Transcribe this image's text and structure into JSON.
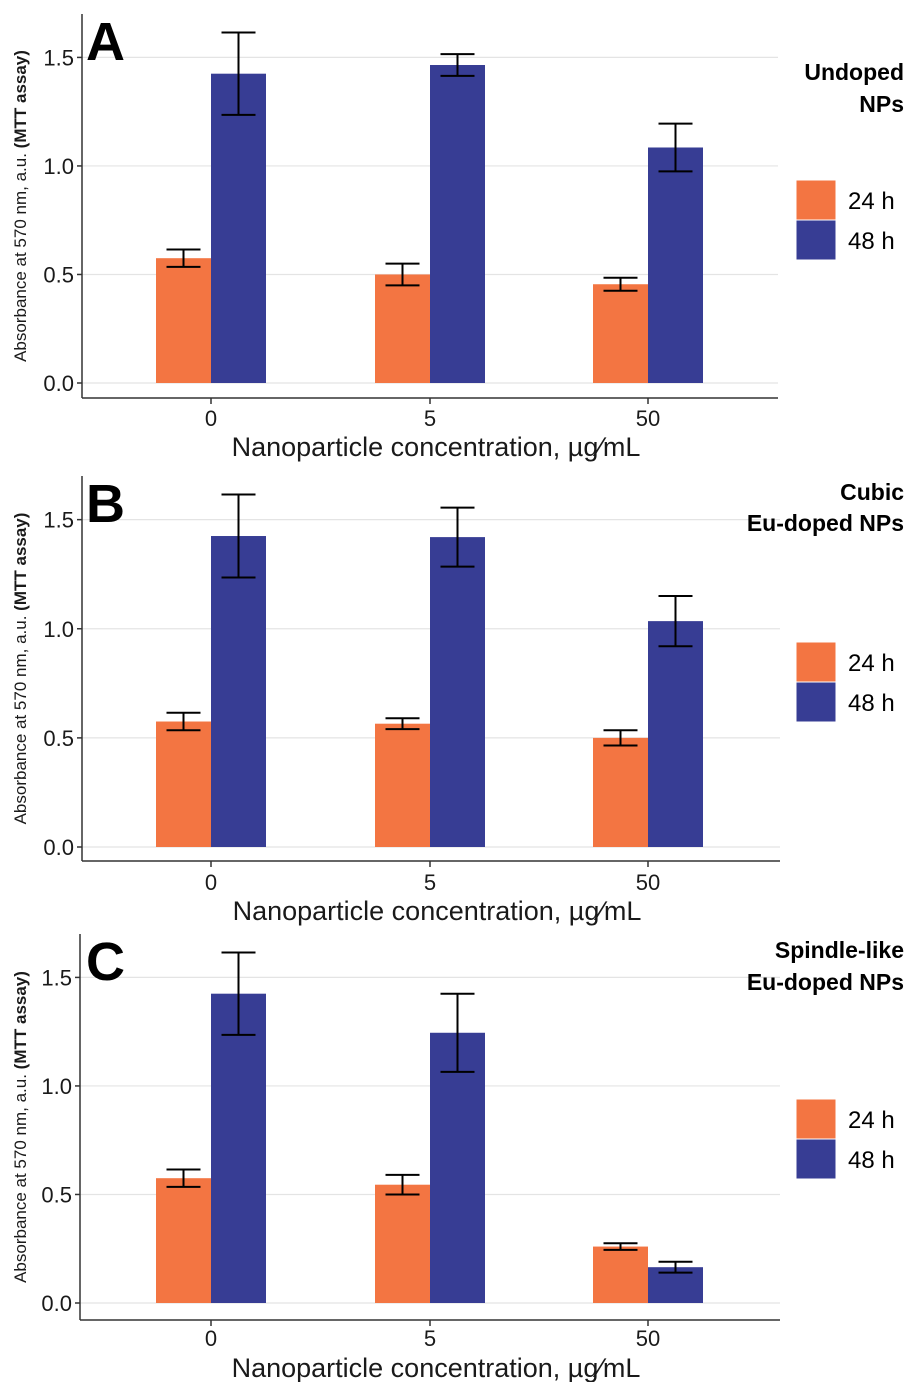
{
  "chart_data": [
    {
      "type": "bar",
      "panel_label": "A",
      "title": "Undoped NPs",
      "title_lines": [
        "Undoped",
        "NPs"
      ],
      "categories": [
        "0",
        "5",
        "50"
      ],
      "xlabel": "Nanoparticle concentration, µg∕mL",
      "ylabel": "Absorbance at 570 nm, a.u.",
      "ylabel_bold": "(MTT assay)",
      "ylim": [
        0,
        1.7
      ],
      "yticks": [
        "0.0",
        "0.5",
        "1.0",
        "1.5"
      ],
      "grid": true,
      "legend": "right",
      "series": [
        {
          "name": "24 h",
          "color": "#F37542",
          "values": [
            0.575,
            0.5,
            0.455
          ],
          "errors": [
            0.04,
            0.05,
            0.03
          ]
        },
        {
          "name": "48 h",
          "color": "#373D94",
          "values": [
            1.425,
            1.465,
            1.085
          ],
          "errors": [
            0.19,
            0.05,
            0.11
          ]
        }
      ]
    },
    {
      "type": "bar",
      "panel_label": "B",
      "title": "Cubic Eu-doped NPs",
      "title_lines": [
        "Cubic",
        "Eu-doped NPs"
      ],
      "categories": [
        "0",
        "5",
        "50"
      ],
      "xlabel": "Nanoparticle concentration, µg∕mL",
      "ylabel": "Absorbance at 570 nm, a.u.",
      "ylabel_bold": "(MTT assay)",
      "ylim": [
        0,
        1.7
      ],
      "yticks": [
        "0.0",
        "0.5",
        "1.0",
        "1.5"
      ],
      "grid": true,
      "legend": "right",
      "series": [
        {
          "name": "24 h",
          "color": "#F37542",
          "values": [
            0.575,
            0.565,
            0.5
          ],
          "errors": [
            0.04,
            0.025,
            0.035
          ]
        },
        {
          "name": "48 h",
          "color": "#373D94",
          "values": [
            1.425,
            1.42,
            1.035
          ],
          "errors": [
            0.19,
            0.135,
            0.115
          ]
        }
      ]
    },
    {
      "type": "bar",
      "panel_label": "C",
      "title": "Spindle-like Eu-doped NPs",
      "title_lines": [
        "Spindle-like",
        "Eu-doped NPs"
      ],
      "categories": [
        "0",
        "5",
        "50"
      ],
      "xlabel": "Nanoparticle concentration, µg∕mL",
      "ylabel": "Absorbance at 570 nm, a.u.",
      "ylabel_bold": "(MTT assay)",
      "ylim": [
        0,
        1.7
      ],
      "yticks": [
        "0.0",
        "0.5",
        "1.0",
        "1.5"
      ],
      "grid": true,
      "legend": "right",
      "series": [
        {
          "name": "24 h",
          "color": "#F37542",
          "values": [
            0.575,
            0.545,
            0.26
          ],
          "errors": [
            0.04,
            0.045,
            0.015
          ]
        },
        {
          "name": "48 h",
          "color": "#373D94",
          "values": [
            1.425,
            1.245,
            0.165
          ],
          "errors": [
            0.19,
            0.18,
            0.025
          ]
        }
      ]
    }
  ]
}
